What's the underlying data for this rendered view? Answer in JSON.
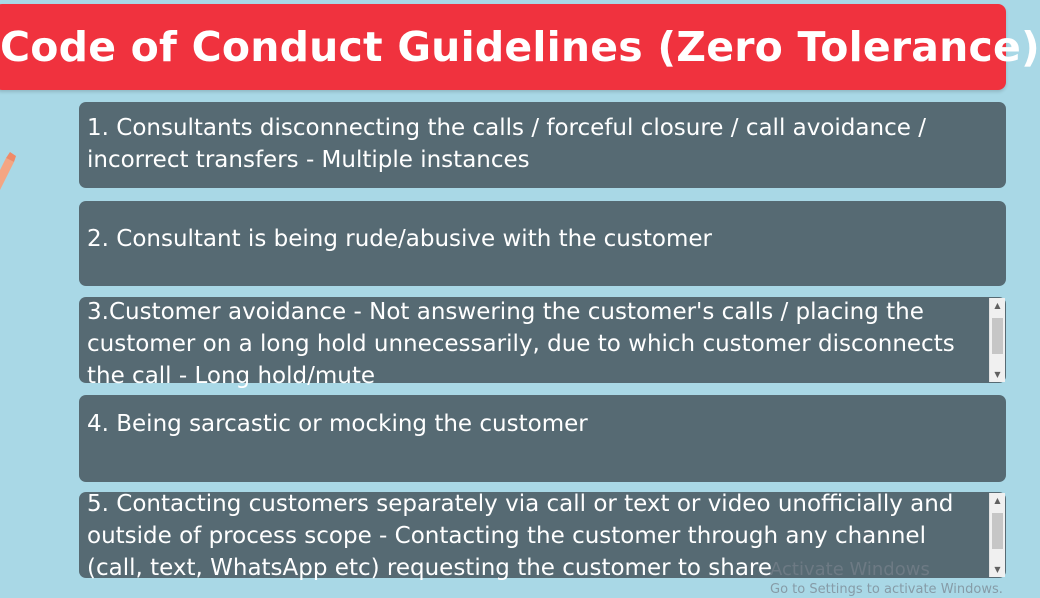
{
  "title": "Code of Conduct Guidelines (Zero Tolerance)",
  "colors": {
    "background": "#a9d8e6",
    "title_banner": "#f0323e",
    "item_box": "#566a73",
    "text": "#ffffff"
  },
  "items": [
    {
      "text": "1. Consultants disconnecting the calls / forceful closure / call avoidance / incorrect transfers - Multiple instances"
    },
    {
      "text": "2. Consultant is being rude/abusive with the customer"
    },
    {
      "text": "3.Customer avoidance - Not answering the customer's calls / placing the customer on a long hold unnecessarily, due to which customer disconnects the call - Long hold/mute"
    },
    {
      "text": "4. Being sarcastic or mocking the customer"
    },
    {
      "text": "5. Contacting customers separately via call or text or video unofficially and outside of process scope -  Contacting the customer through any channel (call, text, WhatsApp etc) requesting the customer to share"
    }
  ],
  "scrollbar": {
    "up_arrow": "▲",
    "down_arrow": "▼"
  },
  "watermark": {
    "line1": "Activate Windows",
    "line2": "Go to Settings to activate Windows."
  }
}
